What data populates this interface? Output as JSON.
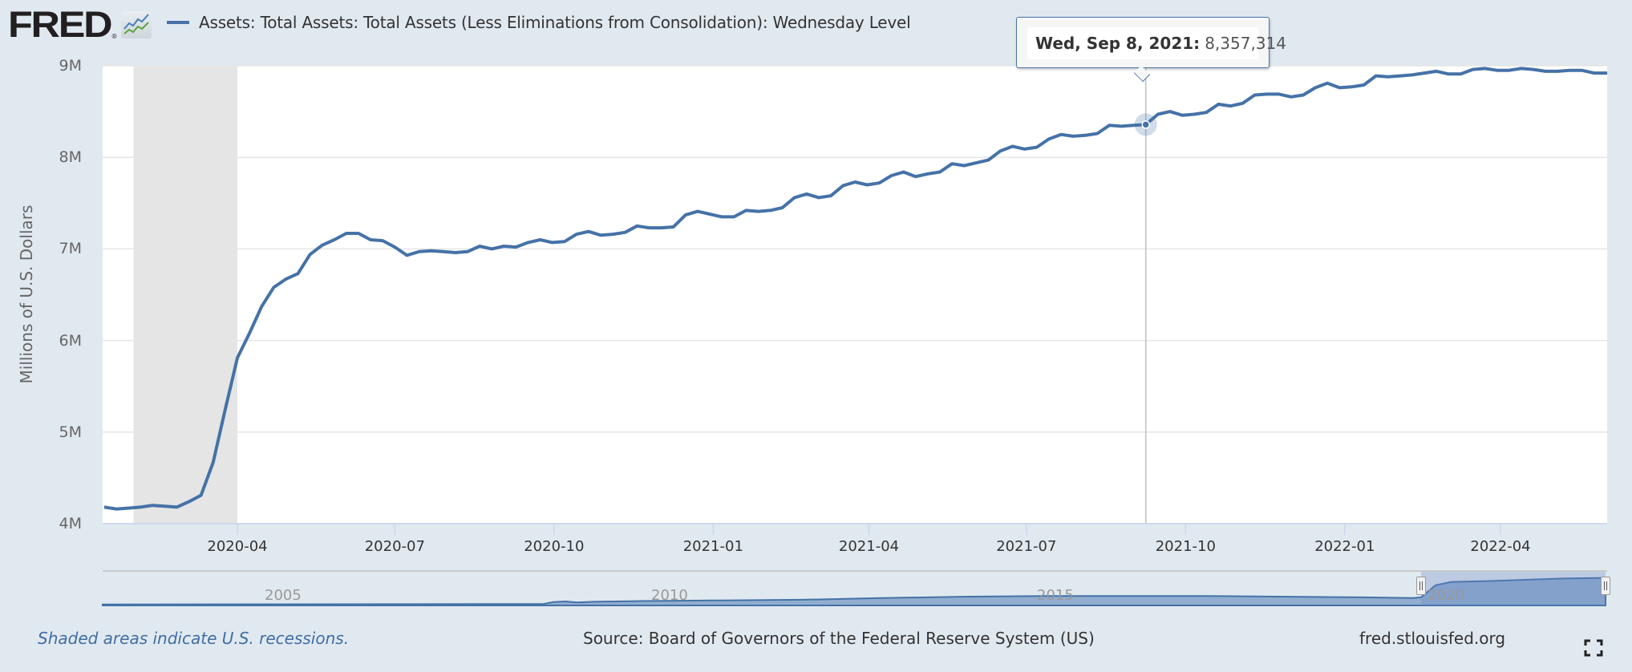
{
  "header": {
    "logo_text": "FRED",
    "logo_registered": "®",
    "logo_icon": "line-chart-icon",
    "legend_label": "Assets: Total Assets: Total Assets (Less Eliminations from Consolidation): Wednesday Level"
  },
  "tooltip": {
    "date": "Wed, Sep 8, 2021:",
    "value": "8,357,314"
  },
  "footer": {
    "recession_note": "Shaded areas indicate U.S. recessions.",
    "source": "Source: Board of Governors of the Federal Reserve System (US)",
    "site": "fred.stlouisfed.org",
    "fullscreen_icon": "fullscreen-icon"
  },
  "navigator": {
    "labels": [
      "2005",
      "2010",
      "2015",
      "2020"
    ],
    "selected_range": [
      "2020-01-15",
      "2022-06-08"
    ]
  },
  "colors": {
    "series": "#4572a7",
    "recession": "#e5e5e5",
    "background": "#e1e9f0",
    "note": "#3f6da6"
  },
  "chart_data": {
    "type": "line",
    "title": "Assets: Total Assets: Total Assets (Less Eliminations from Consolidation): Wednesday Level",
    "xlabel": "",
    "ylabel": "Millions of U.S. Dollars",
    "ylim": [
      4000000,
      9000000
    ],
    "yticks": [
      4000000,
      5000000,
      6000000,
      7000000,
      8000000,
      9000000
    ],
    "ytick_labels": [
      "4M",
      "5M",
      "6M",
      "7M",
      "8M",
      "9M"
    ],
    "xlim": [
      "2020-01-08",
      "2022-06-08"
    ],
    "xticks": [
      "2020-04-01",
      "2020-07-01",
      "2020-10-01",
      "2021-01-01",
      "2021-04-01",
      "2021-07-01",
      "2021-10-01",
      "2022-01-01",
      "2022-04-01"
    ],
    "xtick_labels": [
      "2020-04",
      "2020-07",
      "2020-10",
      "2021-01",
      "2021-04",
      "2021-07",
      "2021-10",
      "2022-01",
      "2022-04"
    ],
    "grid": true,
    "legend": "top-left",
    "recessions": [
      [
        "2020-02-01",
        "2020-04-01"
      ]
    ],
    "highlight": {
      "date": "2021-09-08",
      "value": 8357314
    },
    "start_date": "2020-01-15",
    "frequency": "weekly",
    "series": [
      {
        "name": "Total Assets (Less Eliminations from Consolidation)",
        "values": [
          4180000,
          4160000,
          4170000,
          4180000,
          4200000,
          4190000,
          4180000,
          4240000,
          4310000,
          4670000,
          5250000,
          5810000,
          6080000,
          6370000,
          6580000,
          6670000,
          6730000,
          6940000,
          7040000,
          7100000,
          7170000,
          7170000,
          7100000,
          7090000,
          7020000,
          6930000,
          6970000,
          6980000,
          6970000,
          6960000,
          6970000,
          7030000,
          7000000,
          7030000,
          7020000,
          7070000,
          7100000,
          7070000,
          7080000,
          7160000,
          7190000,
          7150000,
          7160000,
          7180000,
          7250000,
          7230000,
          7230000,
          7240000,
          7370000,
          7410000,
          7380000,
          7350000,
          7350000,
          7420000,
          7410000,
          7420000,
          7450000,
          7560000,
          7600000,
          7560000,
          7580000,
          7690000,
          7730000,
          7700000,
          7720000,
          7800000,
          7840000,
          7790000,
          7820000,
          7840000,
          7930000,
          7910000,
          7940000,
          7970000,
          8070000,
          8120000,
          8090000,
          8110000,
          8200000,
          8250000,
          8230000,
          8240000,
          8260000,
          8350000,
          8340000,
          8350000,
          8357314,
          8470000,
          8500000,
          8460000,
          8470000,
          8490000,
          8580000,
          8560000,
          8590000,
          8680000,
          8690000,
          8690000,
          8660000,
          8680000,
          8760000,
          8810000,
          8760000,
          8770000,
          8790000,
          8890000,
          8880000,
          8890000,
          8900000,
          8920000,
          8940000,
          8910000,
          8910000,
          8960000,
          8970000,
          8950000,
          8950000,
          8970000,
          8960000,
          8940000,
          8940000,
          8950000,
          8950000,
          8920000,
          8920000,
          8920000
        ]
      }
    ]
  }
}
